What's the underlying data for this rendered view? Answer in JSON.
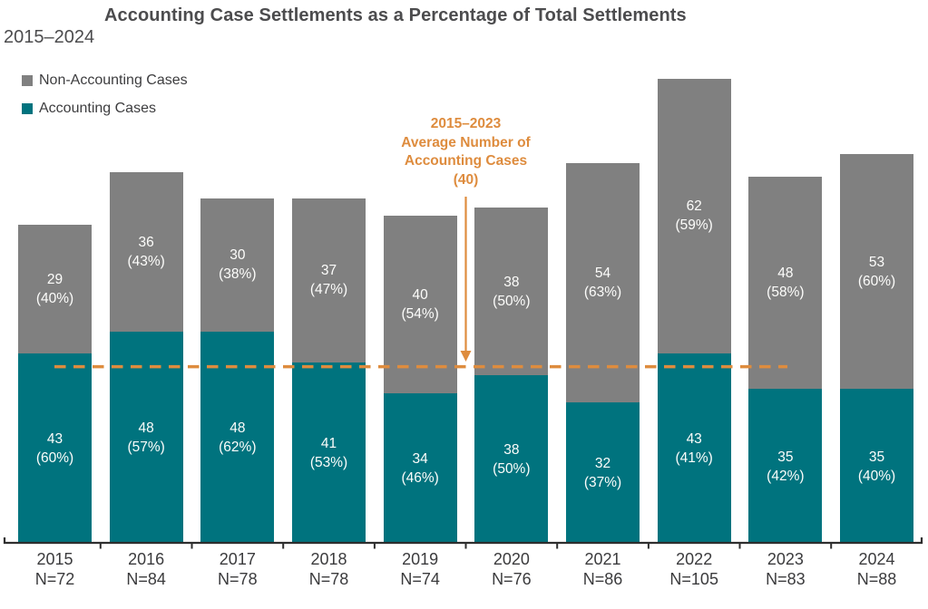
{
  "title": "Accounting Case Settlements as a Percentage of Total Settlements",
  "subtitle": "2015–2024",
  "legend": {
    "items": [
      {
        "label": "Non-Accounting Cases",
        "color": "#808080"
      },
      {
        "label": "Accounting Cases",
        "color": "#00737E"
      }
    ]
  },
  "annotation": {
    "lines": [
      "2015–2023",
      "Average Number of",
      "Accounting Cases",
      "(40)"
    ],
    "color": "#DE8C3E"
  },
  "chart_data": {
    "type": "bar",
    "stacked": true,
    "title": "Accounting Case Settlements as a Percentage of Total Settlements",
    "subtitle": "2015–2024",
    "categories": [
      "2015",
      "2016",
      "2017",
      "2018",
      "2019",
      "2020",
      "2021",
      "2022",
      "2023",
      "2024"
    ],
    "n_labels": [
      "N=72",
      "N=84",
      "N=78",
      "N=78",
      "N=74",
      "N=76",
      "N=86",
      "N=105",
      "N=83",
      "N=88"
    ],
    "totals": [
      72,
      84,
      78,
      78,
      74,
      76,
      86,
      105,
      83,
      88
    ],
    "series": [
      {
        "name": "Accounting Cases",
        "color": "#00737E",
        "values": [
          43,
          48,
          48,
          41,
          34,
          38,
          32,
          43,
          35,
          35
        ],
        "pct": [
          60,
          57,
          62,
          53,
          46,
          50,
          37,
          41,
          42,
          40
        ]
      },
      {
        "name": "Non-Accounting Cases",
        "color": "#808080",
        "values": [
          29,
          36,
          30,
          37,
          40,
          38,
          54,
          62,
          48,
          53
        ],
        "pct": [
          40,
          43,
          38,
          47,
          54,
          50,
          63,
          59,
          58,
          60
        ]
      }
    ],
    "reference_line": {
      "value": 40,
      "label": "2015–2023 Average Number of Accounting Cases (40)",
      "color": "#DE8C3E",
      "span_categories": [
        "2015",
        "2023"
      ]
    },
    "ylim": [
      0,
      105
    ],
    "grid": false,
    "legend_position": "top-left"
  }
}
